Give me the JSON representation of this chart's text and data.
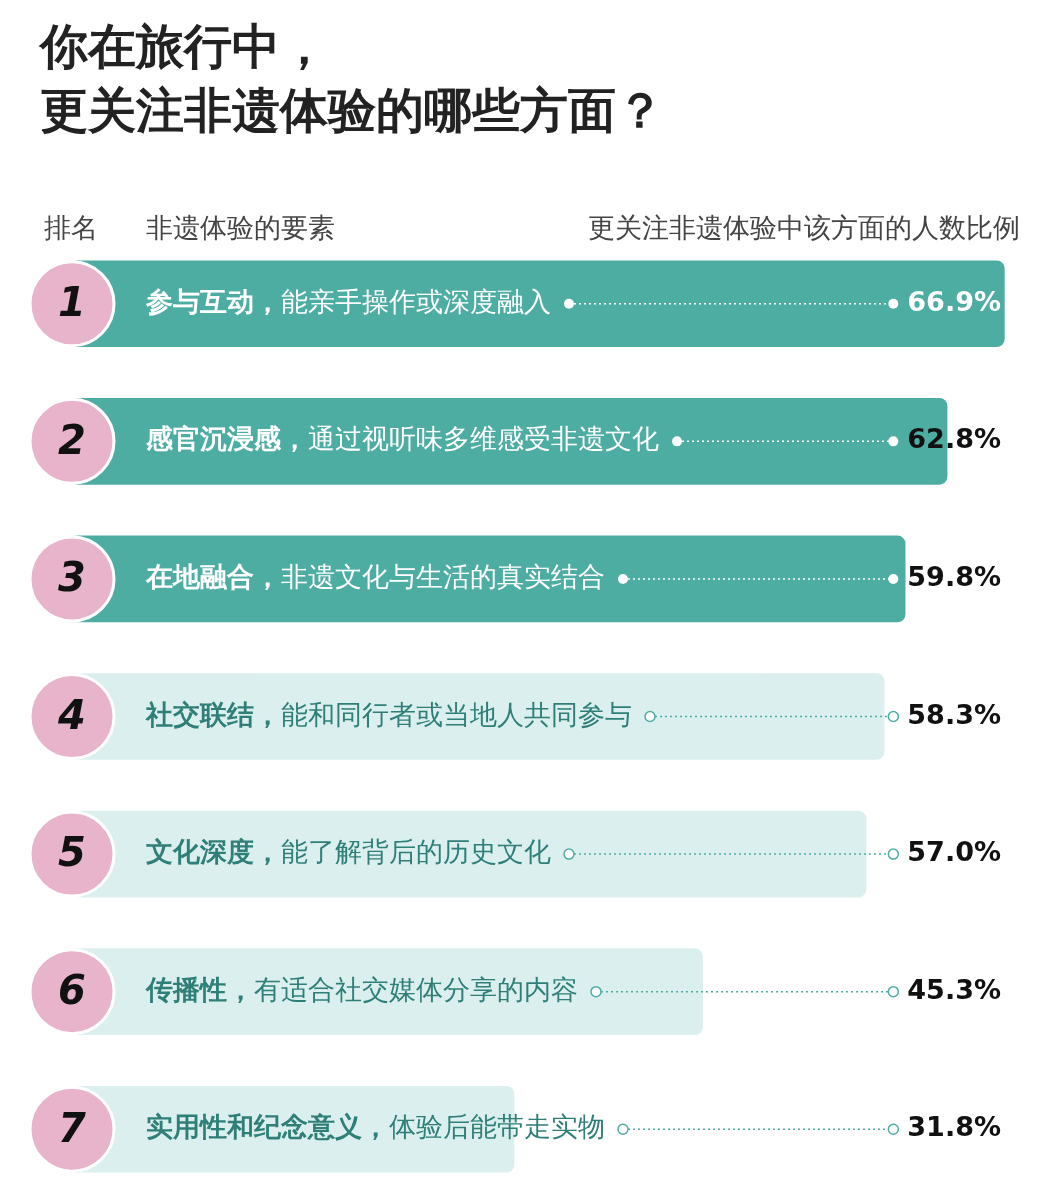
{
  "chart_data": {
    "type": "bar",
    "orientation": "horizontal",
    "title": "你在旅行中，更关注非遗体验的哪些方面？",
    "categories": [
      "参与互动，能亲手操作或深度融入",
      "感官沉浸感，通过视听味多维感受非遗文化",
      "在地融合，非遗文化与生活的真实结合",
      "社交联结，能和同行者或当地人共同参与",
      "文化深度，能了解背后的历史文化",
      "传播性，有适合社交媒体分享的内容",
      "实用性和纪念意义，体验后能带走实物"
    ],
    "values": [
      66.9,
      62.8,
      59.8,
      58.3,
      57.0,
      45.3,
      31.8
    ],
    "value_labels": [
      "66.9%",
      "62.8%",
      "59.8%",
      "58.3%",
      "57.0%",
      "45.3%",
      "31.8%"
    ],
    "colors": [
      "#4eada3",
      "#4eada3",
      "#4eada3",
      "#dbf0ee",
      "#dbf0ee",
      "#dbf0ee",
      "#dbf0ee"
    ],
    "annotations": [
      "排名",
      "非遗体验的要素",
      "更关注非遗体验中该方面的人数比例",
      "1",
      "2",
      "3",
      "4",
      "5",
      "6",
      "7"
    ]
  }
}
